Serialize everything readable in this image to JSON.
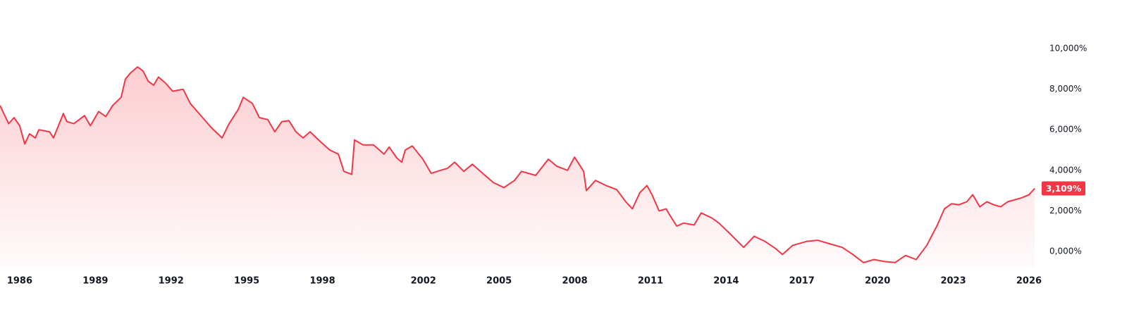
{
  "chart_data": {
    "type": "line",
    "x": [
      1985.22,
      1985.56,
      1985.78,
      1986.0,
      1986.2,
      1986.39,
      1986.62,
      1986.76,
      1987.18,
      1987.34,
      1987.73,
      1987.87,
      1988.15,
      1988.57,
      1988.8,
      1989.13,
      1989.41,
      1989.69,
      1990.02,
      1990.19,
      1990.39,
      1990.67,
      1990.89,
      1991.09,
      1991.31,
      1991.5,
      1991.78,
      1992.06,
      1992.48,
      1992.76,
      1993.18,
      1993.6,
      1994.02,
      1994.3,
      1994.66,
      1994.86,
      1995.22,
      1995.5,
      1995.83,
      1996.11,
      1996.39,
      1996.67,
      1996.95,
      1997.23,
      1997.51,
      1997.93,
      1998.29,
      1998.63,
      1998.85,
      1999.16,
      1999.27,
      1999.61,
      2000.02,
      2000.44,
      2000.64,
      2000.95,
      2001.14,
      2001.28,
      2001.56,
      2001.98,
      2002.31,
      2002.68,
      2002.96,
      2003.24,
      2003.6,
      2003.94,
      2004.35,
      2004.77,
      2005.19,
      2005.61,
      2005.89,
      2006.45,
      2006.95,
      2007.29,
      2007.71,
      2007.99,
      2008.35,
      2008.46,
      2008.82,
      2009.24,
      2009.66,
      2010.02,
      2010.28,
      2010.58,
      2010.86,
      2011.06,
      2011.34,
      2011.62,
      2011.76,
      2012.04,
      2012.31,
      2012.73,
      2013.01,
      2013.43,
      2013.71,
      2014.13,
      2014.69,
      2015.11,
      2015.53,
      2015.95,
      2016.23,
      2016.64,
      2017.2,
      2017.62,
      2018.04,
      2018.6,
      2019.02,
      2019.44,
      2019.86,
      2020.28,
      2020.69,
      2021.11,
      2021.53,
      2021.95,
      2022.37,
      2022.65,
      2022.93,
      2023.21,
      2023.54,
      2023.77,
      2024.05,
      2024.33,
      2024.61,
      2024.88,
      2025.16,
      2025.44,
      2025.72,
      2026.0,
      2026.23
    ],
    "series": [
      {
        "color": "#f23645",
        "values": [
          7.2,
          6.3,
          6.6,
          6.2,
          5.3,
          5.8,
          5.6,
          6.0,
          5.9,
          5.6,
          6.8,
          6.4,
          6.3,
          6.7,
          6.2,
          6.9,
          6.65,
          7.2,
          7.6,
          8.5,
          8.8,
          9.1,
          8.9,
          8.4,
          8.2,
          8.6,
          8.3,
          7.9,
          8.0,
          7.3,
          6.7,
          6.1,
          5.6,
          6.3,
          7.0,
          7.6,
          7.3,
          6.6,
          6.5,
          5.9,
          6.4,
          6.45,
          5.9,
          5.6,
          5.9,
          5.4,
          5.0,
          4.8,
          3.95,
          3.8,
          5.5,
          5.25,
          5.25,
          4.8,
          5.15,
          4.6,
          4.4,
          5.0,
          5.2,
          4.55,
          3.85,
          4.0,
          4.1,
          4.4,
          3.95,
          4.3,
          3.85,
          3.4,
          3.15,
          3.5,
          3.95,
          3.75,
          4.55,
          4.2,
          4.0,
          4.65,
          3.95,
          3.0,
          3.5,
          3.25,
          3.05,
          2.45,
          2.1,
          2.9,
          3.25,
          2.8,
          2.0,
          2.1,
          1.8,
          1.25,
          1.4,
          1.3,
          1.9,
          1.65,
          1.4,
          0.9,
          0.2,
          0.75,
          0.5,
          0.15,
          -0.15,
          0.3,
          0.5,
          0.55,
          0.4,
          0.2,
          -0.15,
          -0.55,
          -0.4,
          -0.5,
          -0.55,
          -0.2,
          -0.4,
          0.3,
          1.3,
          2.1,
          2.35,
          2.3,
          2.45,
          2.8,
          2.2,
          2.45,
          2.3,
          2.2,
          2.45,
          2.55,
          2.65,
          2.8,
          3.109
        ]
      }
    ],
    "current_value": {
      "value": 3.109,
      "label": "3,109%"
    },
    "xlim": [
      1985.22,
      2026.28
    ],
    "xticks": [
      1986,
      1989,
      1992,
      1995,
      1998,
      2002,
      2005,
      2008,
      2011,
      2014,
      2017,
      2020,
      2023,
      2026
    ],
    "ylim": [
      -0.8,
      12.4
    ],
    "yticks": [
      {
        "value": 0,
        "label": "0,000%"
      },
      {
        "value": 2,
        "label": "2,000%"
      },
      {
        "value": 4,
        "label": "4,000%"
      },
      {
        "value": 6,
        "label": "6,000%"
      },
      {
        "value": 8,
        "label": "8,000%"
      },
      {
        "value": 10,
        "label": "10,000%"
      }
    ],
    "grid": false
  }
}
